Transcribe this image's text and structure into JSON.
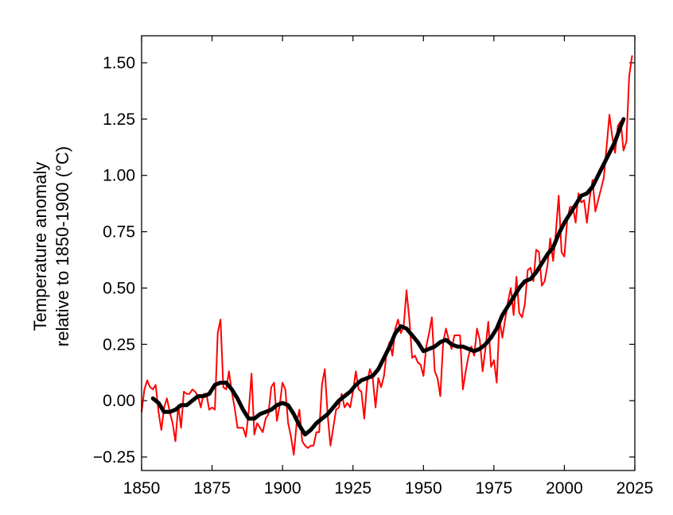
{
  "chart_data": {
    "type": "line",
    "title": "",
    "xlabel": "",
    "ylabel": [
      "Temperature anomaly",
      "relative to 1850-1900 (°C)"
    ],
    "xlim": [
      1850,
      2025
    ],
    "ylim": [
      -0.31,
      1.62
    ],
    "x_ticks": [
      1850,
      1875,
      1900,
      1925,
      1950,
      1975,
      2000,
      2025
    ],
    "y_ticks": [
      -0.25,
      0.0,
      0.25,
      0.5,
      0.75,
      1.0,
      1.25,
      1.5
    ],
    "x_tick_labels": [
      "1850",
      "1875",
      "1900",
      "1925",
      "1950",
      "1975",
      "2000",
      "2025"
    ],
    "y_tick_labels": [
      "−0.25",
      "0.00",
      "0.25",
      "0.50",
      "0.75",
      "1.00",
      "1.25",
      "1.50"
    ],
    "grid": false,
    "series": [
      {
        "color": "#ff0000",
        "style": "annual",
        "points": [
          [
            1850,
            -0.05
          ],
          [
            1851,
            0.05
          ],
          [
            1852,
            0.09
          ],
          [
            1853,
            0.06
          ],
          [
            1854,
            0.05
          ],
          [
            1855,
            0.07
          ],
          [
            1856,
            -0.05
          ],
          [
            1857,
            -0.13
          ],
          [
            1858,
            -0.03
          ],
          [
            1859,
            0.01
          ],
          [
            1860,
            -0.05
          ],
          [
            1861,
            -0.1
          ],
          [
            1862,
            -0.18
          ],
          [
            1863,
            -0.02
          ],
          [
            1864,
            -0.12
          ],
          [
            1865,
            0.04
          ],
          [
            1866,
            0.03
          ],
          [
            1867,
            0.03
          ],
          [
            1868,
            0.05
          ],
          [
            1869,
            0.04
          ],
          [
            1870,
            0.02
          ],
          [
            1871,
            -0.03
          ],
          [
            1872,
            0.03
          ],
          [
            1873,
            0.03
          ],
          [
            1874,
            -0.04
          ],
          [
            1875,
            -0.03
          ],
          [
            1876,
            -0.04
          ],
          [
            1877,
            0.3
          ],
          [
            1878,
            0.36
          ],
          [
            1879,
            0.06
          ],
          [
            1880,
            0.05
          ],
          [
            1881,
            0.13
          ],
          [
            1882,
            0.04
          ],
          [
            1883,
            -0.03
          ],
          [
            1884,
            -0.12
          ],
          [
            1885,
            -0.12
          ],
          [
            1886,
            -0.12
          ],
          [
            1887,
            -0.16
          ],
          [
            1888,
            -0.05
          ],
          [
            1889,
            0.12
          ],
          [
            1890,
            -0.15
          ],
          [
            1891,
            -0.1
          ],
          [
            1892,
            -0.12
          ],
          [
            1893,
            -0.14
          ],
          [
            1894,
            -0.08
          ],
          [
            1895,
            -0.06
          ],
          [
            1896,
            0.06
          ],
          [
            1897,
            0.08
          ],
          [
            1898,
            -0.09
          ],
          [
            1899,
            -0.02
          ],
          [
            1900,
            0.08
          ],
          [
            1901,
            0.05
          ],
          [
            1902,
            -0.1
          ],
          [
            1903,
            -0.16
          ],
          [
            1904,
            -0.24
          ],
          [
            1905,
            -0.1
          ],
          [
            1906,
            -0.04
          ],
          [
            1907,
            -0.18
          ],
          [
            1908,
            -0.2
          ],
          [
            1909,
            -0.21
          ],
          [
            1910,
            -0.2
          ],
          [
            1911,
            -0.2
          ],
          [
            1912,
            -0.14
          ],
          [
            1913,
            -0.14
          ],
          [
            1914,
            0.07
          ],
          [
            1915,
            0.14
          ],
          [
            1916,
            -0.06
          ],
          [
            1917,
            -0.2
          ],
          [
            1918,
            -0.12
          ],
          [
            1919,
            -0.04
          ],
          [
            1920,
            -0.03
          ],
          [
            1921,
            0.03
          ],
          [
            1922,
            -0.03
          ],
          [
            1923,
            -0.01
          ],
          [
            1924,
            -0.03
          ],
          [
            1925,
            0.04
          ],
          [
            1926,
            0.13
          ],
          [
            1927,
            0.05
          ],
          [
            1928,
            0.04
          ],
          [
            1929,
            -0.08
          ],
          [
            1930,
            0.08
          ],
          [
            1931,
            0.14
          ],
          [
            1932,
            0.1
          ],
          [
            1933,
            -0.03
          ],
          [
            1934,
            0.1
          ],
          [
            1935,
            0.06
          ],
          [
            1936,
            0.11
          ],
          [
            1937,
            0.22
          ],
          [
            1938,
            0.26
          ],
          [
            1939,
            0.2
          ],
          [
            1940,
            0.32
          ],
          [
            1941,
            0.36
          ],
          [
            1942,
            0.3
          ],
          [
            1943,
            0.33
          ],
          [
            1944,
            0.49
          ],
          [
            1945,
            0.36
          ],
          [
            1946,
            0.19
          ],
          [
            1947,
            0.2
          ],
          [
            1948,
            0.17
          ],
          [
            1949,
            0.16
          ],
          [
            1950,
            0.11
          ],
          [
            1951,
            0.24
          ],
          [
            1952,
            0.3
          ],
          [
            1953,
            0.37
          ],
          [
            1954,
            0.13
          ],
          [
            1955,
            0.1
          ],
          [
            1956,
            0.02
          ],
          [
            1957,
            0.26
          ],
          [
            1958,
            0.32
          ],
          [
            1959,
            0.27
          ],
          [
            1960,
            0.23
          ],
          [
            1961,
            0.29
          ],
          [
            1962,
            0.29
          ],
          [
            1963,
            0.29
          ],
          [
            1964,
            0.05
          ],
          [
            1965,
            0.13
          ],
          [
            1966,
            0.2
          ],
          [
            1967,
            0.24
          ],
          [
            1968,
            0.2
          ],
          [
            1969,
            0.32
          ],
          [
            1970,
            0.27
          ],
          [
            1971,
            0.13
          ],
          [
            1972,
            0.23
          ],
          [
            1973,
            0.35
          ],
          [
            1974,
            0.15
          ],
          [
            1975,
            0.18
          ],
          [
            1976,
            0.08
          ],
          [
            1977,
            0.36
          ],
          [
            1978,
            0.28
          ],
          [
            1979,
            0.36
          ],
          [
            1980,
            0.44
          ],
          [
            1981,
            0.5
          ],
          [
            1982,
            0.38
          ],
          [
            1983,
            0.55
          ],
          [
            1984,
            0.39
          ],
          [
            1985,
            0.37
          ],
          [
            1986,
            0.43
          ],
          [
            1987,
            0.58
          ],
          [
            1988,
            0.59
          ],
          [
            1989,
            0.53
          ],
          [
            1990,
            0.67
          ],
          [
            1991,
            0.66
          ],
          [
            1992,
            0.51
          ],
          [
            1993,
            0.53
          ],
          [
            1994,
            0.6
          ],
          [
            1995,
            0.72
          ],
          [
            1996,
            0.62
          ],
          [
            1997,
            0.75
          ],
          [
            1998,
            0.91
          ],
          [
            1999,
            0.66
          ],
          [
            2000,
            0.64
          ],
          [
            2001,
            0.8
          ],
          [
            2002,
            0.86
          ],
          [
            2003,
            0.86
          ],
          [
            2004,
            0.79
          ],
          [
            2005,
            0.92
          ],
          [
            2006,
            0.88
          ],
          [
            2007,
            0.89
          ],
          [
            2008,
            0.79
          ],
          [
            2009,
            0.9
          ],
          [
            2010,
            0.98
          ],
          [
            2011,
            0.84
          ],
          [
            2012,
            0.89
          ],
          [
            2013,
            0.94
          ],
          [
            2014,
            0.99
          ],
          [
            2015,
            1.13
          ],
          [
            2016,
            1.27
          ],
          [
            2017,
            1.17
          ],
          [
            2018,
            1.1
          ],
          [
            2019,
            1.22
          ],
          [
            2020,
            1.24
          ],
          [
            2021,
            1.11
          ],
          [
            2022,
            1.15
          ],
          [
            2023,
            1.44
          ],
          [
            2024,
            1.53
          ]
        ]
      },
      {
        "color": "#000000",
        "style": "smoothed",
        "points": [
          [
            1854,
            0.01
          ],
          [
            1856,
            -0.01
          ],
          [
            1858,
            -0.05
          ],
          [
            1860,
            -0.05
          ],
          [
            1862,
            -0.04
          ],
          [
            1864,
            -0.02
          ],
          [
            1866,
            -0.02
          ],
          [
            1868,
            0.0
          ],
          [
            1870,
            0.02
          ],
          [
            1872,
            0.02
          ],
          [
            1874,
            0.03
          ],
          [
            1876,
            0.07
          ],
          [
            1878,
            0.08
          ],
          [
            1880,
            0.08
          ],
          [
            1882,
            0.05
          ],
          [
            1884,
            0.01
          ],
          [
            1886,
            -0.04
          ],
          [
            1888,
            -0.08
          ],
          [
            1890,
            -0.08
          ],
          [
            1892,
            -0.06
          ],
          [
            1894,
            -0.05
          ],
          [
            1896,
            -0.04
          ],
          [
            1898,
            -0.02
          ],
          [
            1900,
            -0.01
          ],
          [
            1902,
            -0.02
          ],
          [
            1904,
            -0.06
          ],
          [
            1906,
            -0.11
          ],
          [
            1908,
            -0.15
          ],
          [
            1910,
            -0.13
          ],
          [
            1912,
            -0.1
          ],
          [
            1914,
            -0.08
          ],
          [
            1916,
            -0.06
          ],
          [
            1918,
            -0.03
          ],
          [
            1920,
            0.0
          ],
          [
            1922,
            0.02
          ],
          [
            1924,
            0.04
          ],
          [
            1926,
            0.07
          ],
          [
            1928,
            0.09
          ],
          [
            1930,
            0.1
          ],
          [
            1932,
            0.11
          ],
          [
            1934,
            0.14
          ],
          [
            1936,
            0.19
          ],
          [
            1938,
            0.24
          ],
          [
            1940,
            0.3
          ],
          [
            1942,
            0.33
          ],
          [
            1944,
            0.32
          ],
          [
            1946,
            0.29
          ],
          [
            1948,
            0.26
          ],
          [
            1950,
            0.22
          ],
          [
            1952,
            0.23
          ],
          [
            1954,
            0.24
          ],
          [
            1956,
            0.26
          ],
          [
            1958,
            0.27
          ],
          [
            1960,
            0.25
          ],
          [
            1962,
            0.24
          ],
          [
            1964,
            0.24
          ],
          [
            1966,
            0.23
          ],
          [
            1968,
            0.22
          ],
          [
            1970,
            0.23
          ],
          [
            1972,
            0.25
          ],
          [
            1974,
            0.28
          ],
          [
            1976,
            0.32
          ],
          [
            1978,
            0.38
          ],
          [
            1980,
            0.42
          ],
          [
            1982,
            0.46
          ],
          [
            1984,
            0.5
          ],
          [
            1986,
            0.53
          ],
          [
            1988,
            0.54
          ],
          [
            1990,
            0.57
          ],
          [
            1992,
            0.61
          ],
          [
            1994,
            0.65
          ],
          [
            1996,
            0.68
          ],
          [
            1998,
            0.74
          ],
          [
            2000,
            0.79
          ],
          [
            2002,
            0.83
          ],
          [
            2004,
            0.87
          ],
          [
            2006,
            0.91
          ],
          [
            2008,
            0.92
          ],
          [
            2010,
            0.95
          ],
          [
            2012,
            1.0
          ],
          [
            2014,
            1.05
          ],
          [
            2016,
            1.1
          ],
          [
            2018,
            1.15
          ],
          [
            2020,
            1.22
          ],
          [
            2021,
            1.25
          ]
        ]
      }
    ]
  }
}
